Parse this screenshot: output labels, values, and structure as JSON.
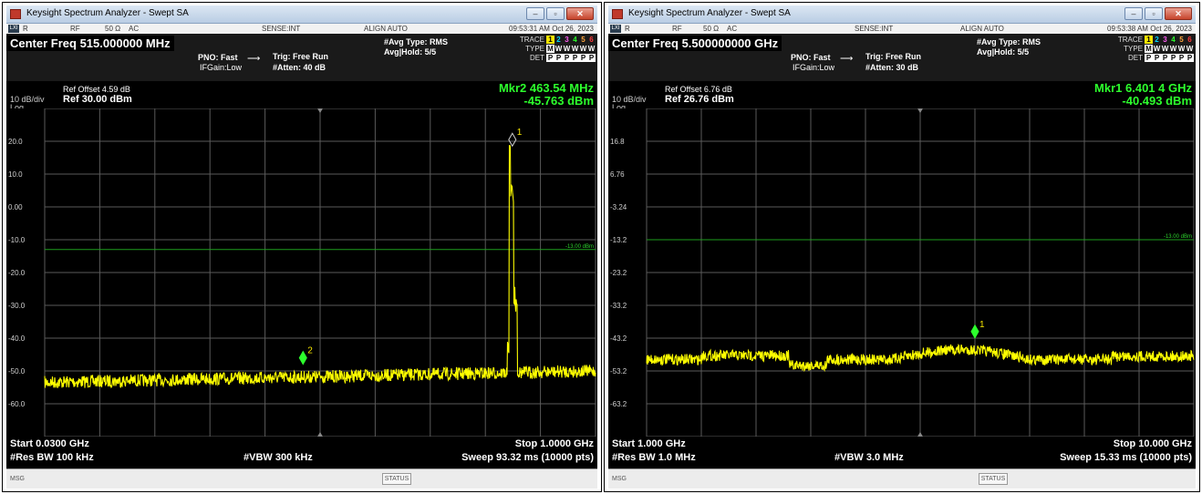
{
  "left": {
    "window_title": "Keysight Spectrum Analyzer - Swept SA",
    "status_row": {
      "lxi": "LXI",
      "mode": "R",
      "input": "RF",
      "impedance": "50 Ω",
      "coupling": "AC",
      "sense": "SENSE:INT",
      "align": "ALIGN AUTO",
      "timestamp": "09:53:31 AM Oct 26, 2023"
    },
    "center_freq": "Center Freq 515.000000 MHz",
    "pno": "PNO: Fast",
    "ifgain": "IFGain:Low",
    "trig": "Trig: Free Run",
    "atten": "#Atten: 40 dB",
    "avg_type": "#Avg Type: RMS",
    "avg_hold": "Avg|Hold: 5/5",
    "trace_label": "TRACE",
    "type_label": "TYPE",
    "det_label": "DET",
    "trace_numbers": [
      "1",
      "2",
      "3",
      "4",
      "5",
      "6"
    ],
    "type_values": [
      "M",
      "W",
      "W",
      "W",
      "W",
      "W"
    ],
    "det_values": [
      "P",
      "P",
      "P",
      "P",
      "P",
      "P"
    ],
    "ref_offset": "Ref Offset 4.59 dB",
    "scale": "10 dB/div",
    "ref_level": "Ref 30.00 dBm",
    "log_label": "Log",
    "marker_freq": "Mkr2 463.54 MHz",
    "marker_amp": "-45.763 dBm",
    "y_ticks": [
      "20.0",
      "10.0",
      "0.00",
      "-10.0",
      "-20.0",
      "-30.0",
      "-40.0",
      "-50.0",
      "-60.0"
    ],
    "limit_label": "-13.00 dBm",
    "markers": [
      {
        "id": "1",
        "label": "1"
      },
      {
        "id": "2",
        "label": "2"
      }
    ],
    "start": "Start 0.0300 GHz",
    "stop": "Stop 1.0000 GHz",
    "rbw": "#Res BW 100 kHz",
    "vbw": "#VBW 300 kHz",
    "sweep": "Sweep  93.32 ms (10000 pts)",
    "msg": "MSG",
    "status": "STATUS"
  },
  "right": {
    "window_title": "Keysight Spectrum Analyzer - Swept SA",
    "status_row": {
      "lxi": "LXI",
      "mode": "R",
      "input": "RF",
      "impedance": "50 Ω",
      "coupling": "AC",
      "sense": "SENSE:INT",
      "align": "ALIGN AUTO",
      "timestamp": "09:53:38 AM Oct 26, 2023"
    },
    "center_freq": "Center Freq 5.500000000 GHz",
    "pno": "PNO: Fast",
    "ifgain": "IFGain:Low",
    "trig": "Trig: Free Run",
    "atten": "#Atten: 30 dB",
    "avg_type": "#Avg Type: RMS",
    "avg_hold": "Avg|Hold: 5/5",
    "trace_label": "TRACE",
    "type_label": "TYPE",
    "det_label": "DET",
    "trace_numbers": [
      "1",
      "2",
      "3",
      "4",
      "5",
      "6"
    ],
    "type_values": [
      "M",
      "W",
      "W",
      "W",
      "W",
      "W"
    ],
    "det_values": [
      "P",
      "P",
      "P",
      "P",
      "P",
      "P"
    ],
    "ref_offset": "Ref Offset 6.76 dB",
    "scale": "10 dB/div",
    "ref_level": "Ref 26.76 dBm",
    "log_label": "Log",
    "marker_freq": "Mkr1 6.401 4 GHz",
    "marker_amp": "-40.493 dBm",
    "y_ticks": [
      "16.8",
      "6.76",
      "-3.24",
      "-13.2",
      "-23.2",
      "-33.2",
      "-43.2",
      "-53.2",
      "-63.2"
    ],
    "limit_label": "-13.00 dBm",
    "markers": [
      {
        "id": "1",
        "label": "1"
      }
    ],
    "start": "Start 1.000 GHz",
    "stop": "Stop 10.000 GHz",
    "rbw": "#Res BW 1.0 MHz",
    "vbw": "#VBW 3.0 MHz",
    "sweep": "Sweep  15.33 ms (10000 pts)",
    "msg": "MSG",
    "status": "STATUS"
  },
  "colors": {
    "trace": "#ffff00",
    "marker": "#2dff2d",
    "limit": "#1e9e1e",
    "grid": "#5a5a5a"
  }
}
